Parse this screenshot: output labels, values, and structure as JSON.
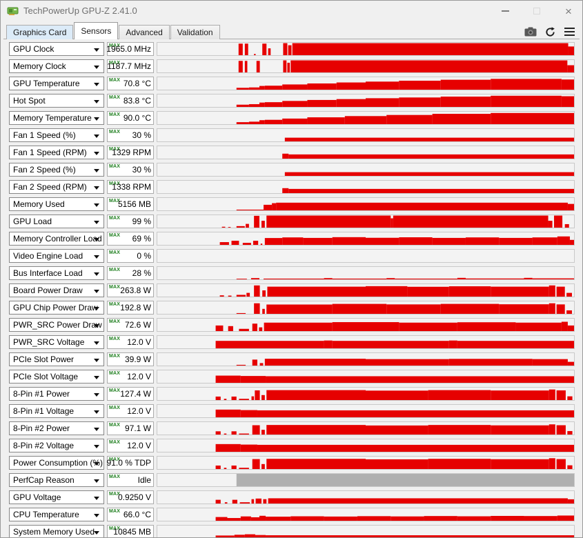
{
  "window": {
    "title": "TechPowerUp GPU-Z 2.41.0",
    "controls": {
      "minimize": "minimize",
      "maximize": "maximize",
      "close": "close"
    }
  },
  "tabs": [
    {
      "label": "Graphics Card",
      "active": false,
      "hover": true
    },
    {
      "label": "Sensors",
      "active": true,
      "hover": false
    },
    {
      "label": "Advanced",
      "active": false,
      "hover": false
    },
    {
      "label": "Validation",
      "active": false,
      "hover": false
    }
  ],
  "toolbar_icons": [
    "camera-icon",
    "refresh-icon",
    "menu-icon"
  ],
  "colors": {
    "graph_red": "#e60000",
    "graph_gray": "#b0b0b0",
    "max_green": "#1c7d1c",
    "dialog_bg": "#f0f0f0"
  },
  "max_label": "MAX",
  "sensors": [
    {
      "label": "GPU Clock",
      "value": "1965.0 MHz",
      "color": "red",
      "segments": [
        [
          0.195,
          0.205,
          0.93
        ],
        [
          0.21,
          0.218,
          0.93
        ],
        [
          0.232,
          0.236,
          0.1
        ],
        [
          0.252,
          0.262,
          0.93
        ],
        [
          0.266,
          0.272,
          0.55
        ],
        [
          0.302,
          0.312,
          0.97
        ],
        [
          0.314,
          0.322,
          0.8
        ],
        [
          0.324,
          0.986,
          0.97
        ],
        [
          0.986,
          1.0,
          0.7
        ]
      ]
    },
    {
      "label": "Memory Clock",
      "value": "1187.7 MHz",
      "color": "red",
      "segments": [
        [
          0.195,
          0.205,
          0.93
        ],
        [
          0.21,
          0.216,
          0.93
        ],
        [
          0.238,
          0.246,
          0.93
        ],
        [
          0.302,
          0.31,
          0.97
        ],
        [
          0.312,
          0.318,
          0.78
        ],
        [
          0.32,
          0.984,
          0.97
        ],
        [
          0.984,
          1.0,
          0.58
        ]
      ]
    },
    {
      "label": "GPU Temperature",
      "value": "70.8 °C",
      "color": "red",
      "segments": [
        [
          0.19,
          0.22,
          0.15
        ],
        [
          0.22,
          0.245,
          0.18
        ],
        [
          0.245,
          0.258,
          0.3
        ],
        [
          0.258,
          0.3,
          0.32
        ],
        [
          0.3,
          0.36,
          0.42
        ],
        [
          0.36,
          0.43,
          0.5
        ],
        [
          0.43,
          0.5,
          0.58
        ],
        [
          0.5,
          0.58,
          0.65
        ],
        [
          0.58,
          0.68,
          0.72
        ],
        [
          0.68,
          0.8,
          0.8
        ],
        [
          0.8,
          0.97,
          0.87
        ],
        [
          0.97,
          1.0,
          0.82
        ]
      ]
    },
    {
      "label": "Hot Spot",
      "value": "83.8 °C",
      "color": "red",
      "segments": [
        [
          0.19,
          0.22,
          0.18
        ],
        [
          0.22,
          0.245,
          0.22
        ],
        [
          0.245,
          0.258,
          0.35
        ],
        [
          0.258,
          0.3,
          0.38
        ],
        [
          0.3,
          0.36,
          0.48
        ],
        [
          0.36,
          0.43,
          0.56
        ],
        [
          0.43,
          0.5,
          0.63
        ],
        [
          0.5,
          0.58,
          0.7
        ],
        [
          0.58,
          0.68,
          0.76
        ],
        [
          0.68,
          0.8,
          0.83
        ],
        [
          0.8,
          0.97,
          0.9
        ],
        [
          0.97,
          1.0,
          0.86
        ]
      ]
    },
    {
      "label": "Memory Temperature",
      "value": "90.0 °C",
      "color": "red",
      "segments": [
        [
          0.19,
          0.22,
          0.16
        ],
        [
          0.22,
          0.245,
          0.2
        ],
        [
          0.245,
          0.258,
          0.32
        ],
        [
          0.258,
          0.3,
          0.35
        ],
        [
          0.3,
          0.36,
          0.45
        ],
        [
          0.36,
          0.45,
          0.55
        ],
        [
          0.45,
          0.55,
          0.65
        ],
        [
          0.55,
          0.66,
          0.74
        ],
        [
          0.66,
          0.8,
          0.83
        ],
        [
          0.8,
          1.0,
          0.9
        ]
      ]
    },
    {
      "label": "Fan 1 Speed (%)",
      "value": "30 %",
      "color": "red",
      "segments": [
        [
          0.306,
          1.0,
          0.3
        ]
      ]
    },
    {
      "label": "Fan 1 Speed (RPM)",
      "value": "1329 RPM",
      "color": "red",
      "segments": [
        [
          0.3,
          0.315,
          0.4
        ],
        [
          0.315,
          1.0,
          0.34
        ]
      ]
    },
    {
      "label": "Fan 2 Speed (%)",
      "value": "30 %",
      "color": "red",
      "segments": [
        [
          0.306,
          1.0,
          0.3
        ]
      ]
    },
    {
      "label": "Fan 2 Speed (RPM)",
      "value": "1338 RPM",
      "color": "red",
      "segments": [
        [
          0.3,
          0.315,
          0.4
        ],
        [
          0.315,
          1.0,
          0.34
        ]
      ]
    },
    {
      "label": "Memory Used",
      "value": "5156 MB",
      "color": "red",
      "segments": [
        [
          0.19,
          0.255,
          0.06
        ],
        [
          0.255,
          0.275,
          0.45
        ],
        [
          0.275,
          0.285,
          0.58
        ],
        [
          0.285,
          0.985,
          0.62
        ],
        [
          0.985,
          1.0,
          0.52
        ]
      ]
    },
    {
      "label": "GPU Load",
      "value": "99 %",
      "color": "red",
      "segments": [
        [
          0.155,
          0.163,
          0.07
        ],
        [
          0.17,
          0.176,
          0.05
        ],
        [
          0.19,
          0.21,
          0.12
        ],
        [
          0.212,
          0.22,
          0.3
        ],
        [
          0.232,
          0.245,
          0.95
        ],
        [
          0.25,
          0.258,
          0.55
        ],
        [
          0.262,
          0.56,
          0.97
        ],
        [
          0.56,
          0.566,
          0.75
        ],
        [
          0.566,
          0.938,
          0.97
        ],
        [
          0.938,
          0.948,
          0.55
        ],
        [
          0.952,
          0.972,
          0.97
        ],
        [
          0.978,
          0.988,
          0.28
        ]
      ]
    },
    {
      "label": "Memory Controller Load",
      "value": "69 %",
      "color": "red",
      "segments": [
        [
          0.15,
          0.172,
          0.22
        ],
        [
          0.178,
          0.196,
          0.33
        ],
        [
          0.205,
          0.225,
          0.16
        ],
        [
          0.23,
          0.242,
          0.33
        ],
        [
          0.248,
          0.252,
          0.1
        ],
        [
          0.258,
          0.3,
          0.55
        ],
        [
          0.3,
          0.35,
          0.6
        ],
        [
          0.35,
          0.42,
          0.56
        ],
        [
          0.42,
          0.5,
          0.62
        ],
        [
          0.5,
          0.58,
          0.57
        ],
        [
          0.58,
          0.66,
          0.61
        ],
        [
          0.66,
          0.74,
          0.56
        ],
        [
          0.74,
          0.82,
          0.6
        ],
        [
          0.82,
          0.9,
          0.56
        ],
        [
          0.9,
          0.96,
          0.6
        ],
        [
          0.96,
          0.99,
          0.68
        ],
        [
          0.99,
          1.0,
          0.4
        ]
      ]
    },
    {
      "label": "Video Engine Load",
      "value": "0 %",
      "color": "red",
      "segments": []
    },
    {
      "label": "Bus Interface Load",
      "value": "28 %",
      "color": "red",
      "segments": [
        [
          0.19,
          0.215,
          0.05
        ],
        [
          0.225,
          0.245,
          0.1
        ],
        [
          0.255,
          0.4,
          0.06
        ],
        [
          0.4,
          0.42,
          0.1
        ],
        [
          0.42,
          0.55,
          0.06
        ],
        [
          0.55,
          0.57,
          0.1
        ],
        [
          0.57,
          0.72,
          0.06
        ],
        [
          0.72,
          0.74,
          0.12
        ],
        [
          0.74,
          0.88,
          0.07
        ],
        [
          0.88,
          0.9,
          0.12
        ],
        [
          0.9,
          1.0,
          0.08
        ]
      ]
    },
    {
      "label": "Board Power Draw",
      "value": "263.8 W",
      "color": "red",
      "segments": [
        [
          0.15,
          0.16,
          0.1
        ],
        [
          0.17,
          0.178,
          0.08
        ],
        [
          0.19,
          0.212,
          0.14
        ],
        [
          0.214,
          0.222,
          0.3
        ],
        [
          0.232,
          0.246,
          0.9
        ],
        [
          0.252,
          0.26,
          0.5
        ],
        [
          0.264,
          0.5,
          0.8
        ],
        [
          0.5,
          0.6,
          0.84
        ],
        [
          0.6,
          0.7,
          0.79
        ],
        [
          0.7,
          0.8,
          0.83
        ],
        [
          0.8,
          0.94,
          0.8
        ],
        [
          0.94,
          0.955,
          0.9
        ],
        [
          0.958,
          0.978,
          0.8
        ],
        [
          0.982,
          0.995,
          0.3
        ]
      ]
    },
    {
      "label": "GPU Chip Power Draw",
      "value": "192.8 W",
      "color": "red",
      "segments": [
        [
          0.19,
          0.212,
          0.06
        ],
        [
          0.232,
          0.246,
          0.85
        ],
        [
          0.252,
          0.258,
          0.4
        ],
        [
          0.262,
          0.42,
          0.75
        ],
        [
          0.42,
          0.55,
          0.8
        ],
        [
          0.55,
          0.68,
          0.76
        ],
        [
          0.68,
          0.82,
          0.8
        ],
        [
          0.82,
          0.94,
          0.77
        ],
        [
          0.94,
          0.955,
          0.85
        ],
        [
          0.958,
          0.978,
          0.76
        ],
        [
          0.982,
          0.995,
          0.28
        ]
      ]
    },
    {
      "label": "PWR_SRC Power Draw",
      "value": "72.6 W",
      "color": "red",
      "segments": [
        [
          0.14,
          0.158,
          0.45
        ],
        [
          0.17,
          0.182,
          0.4
        ],
        [
          0.196,
          0.22,
          0.18
        ],
        [
          0.228,
          0.24,
          0.6
        ],
        [
          0.244,
          0.252,
          0.3
        ],
        [
          0.256,
          0.42,
          0.68
        ],
        [
          0.42,
          0.58,
          0.72
        ],
        [
          0.58,
          0.72,
          0.68
        ],
        [
          0.72,
          0.86,
          0.71
        ],
        [
          0.86,
          0.97,
          0.68
        ],
        [
          0.97,
          0.985,
          0.75
        ],
        [
          0.985,
          1.0,
          0.45
        ]
      ]
    },
    {
      "label": "PWR_SRC Voltage",
      "value": "12.0 V",
      "color": "red",
      "segments": [
        [
          0.14,
          0.4,
          0.6
        ],
        [
          0.4,
          0.42,
          0.63
        ],
        [
          0.42,
          0.7,
          0.6
        ],
        [
          0.7,
          0.72,
          0.63
        ],
        [
          0.72,
          1.0,
          0.6
        ]
      ]
    },
    {
      "label": "PCIe Slot Power",
      "value": "39.9 W",
      "color": "red",
      "segments": [
        [
          0.19,
          0.212,
          0.06
        ],
        [
          0.228,
          0.24,
          0.48
        ],
        [
          0.246,
          0.254,
          0.2
        ],
        [
          0.258,
          0.5,
          0.55
        ],
        [
          0.5,
          0.7,
          0.52
        ],
        [
          0.7,
          0.9,
          0.54
        ],
        [
          0.9,
          0.985,
          0.52
        ],
        [
          0.985,
          1.0,
          0.3
        ]
      ]
    },
    {
      "label": "PCIe Slot Voltage",
      "value": "12.0 V",
      "color": "red",
      "segments": [
        [
          0.14,
          0.2,
          0.58
        ],
        [
          0.2,
          0.26,
          0.55
        ],
        [
          0.26,
          1.0,
          0.53
        ]
      ]
    },
    {
      "label": "8-Pin #1 Power",
      "value": "127.4 W",
      "color": "red",
      "segments": [
        [
          0.14,
          0.152,
          0.28
        ],
        [
          0.16,
          0.166,
          0.1
        ],
        [
          0.178,
          0.19,
          0.28
        ],
        [
          0.196,
          0.22,
          0.1
        ],
        [
          0.226,
          0.232,
          0.3
        ],
        [
          0.234,
          0.246,
          0.78
        ],
        [
          0.25,
          0.258,
          0.4
        ],
        [
          0.262,
          0.5,
          0.8
        ],
        [
          0.5,
          0.65,
          0.76
        ],
        [
          0.65,
          0.8,
          0.8
        ],
        [
          0.8,
          0.94,
          0.77
        ],
        [
          0.94,
          0.955,
          0.85
        ],
        [
          0.958,
          0.98,
          0.78
        ],
        [
          0.984,
          0.996,
          0.3
        ]
      ]
    },
    {
      "label": "8-Pin #1 Voltage",
      "value": "12.0 V",
      "color": "red",
      "segments": [
        [
          0.14,
          0.2,
          0.62
        ],
        [
          0.2,
          0.24,
          0.58
        ],
        [
          0.24,
          1.0,
          0.56
        ]
      ]
    },
    {
      "label": "8-Pin #2 Power",
      "value": "97.1 W",
      "color": "red",
      "segments": [
        [
          0.14,
          0.152,
          0.26
        ],
        [
          0.16,
          0.166,
          0.08
        ],
        [
          0.178,
          0.19,
          0.26
        ],
        [
          0.196,
          0.22,
          0.08
        ],
        [
          0.228,
          0.246,
          0.75
        ],
        [
          0.25,
          0.258,
          0.38
        ],
        [
          0.262,
          0.5,
          0.77
        ],
        [
          0.5,
          0.65,
          0.73
        ],
        [
          0.65,
          0.8,
          0.77
        ],
        [
          0.8,
          0.94,
          0.74
        ],
        [
          0.94,
          0.955,
          0.82
        ],
        [
          0.958,
          0.98,
          0.75
        ],
        [
          0.984,
          0.996,
          0.28
        ]
      ]
    },
    {
      "label": "8-Pin #2 Voltage",
      "value": "12.0 V",
      "color": "red",
      "segments": [
        [
          0.14,
          0.2,
          0.62
        ],
        [
          0.2,
          0.24,
          0.58
        ],
        [
          0.24,
          1.0,
          0.56
        ]
      ]
    },
    {
      "label": "Power Consumption (%)",
      "value": "91.0 % TDP",
      "color": "red",
      "segments": [
        [
          0.14,
          0.152,
          0.28
        ],
        [
          0.16,
          0.166,
          0.1
        ],
        [
          0.178,
          0.19,
          0.28
        ],
        [
          0.196,
          0.22,
          0.1
        ],
        [
          0.228,
          0.246,
          0.8
        ],
        [
          0.25,
          0.258,
          0.4
        ],
        [
          0.262,
          0.5,
          0.82
        ],
        [
          0.5,
          0.65,
          0.78
        ],
        [
          0.65,
          0.8,
          0.82
        ],
        [
          0.8,
          0.94,
          0.79
        ],
        [
          0.94,
          0.955,
          0.87
        ],
        [
          0.958,
          0.98,
          0.8
        ],
        [
          0.984,
          0.996,
          0.3
        ]
      ]
    },
    {
      "label": "PerfCap Reason",
      "value": "Idle",
      "color": "gray",
      "segments": [
        [
          0.19,
          1.0,
          1.0
        ]
      ]
    },
    {
      "label": "GPU Voltage",
      "value": "0.9250 V",
      "color": "red",
      "segments": [
        [
          0.14,
          0.152,
          0.3
        ],
        [
          0.162,
          0.168,
          0.1
        ],
        [
          0.18,
          0.192,
          0.3
        ],
        [
          0.198,
          0.222,
          0.1
        ],
        [
          0.226,
          0.232,
          0.35
        ],
        [
          0.236,
          0.25,
          0.4
        ],
        [
          0.254,
          0.262,
          0.35
        ],
        [
          0.266,
          0.985,
          0.42
        ],
        [
          0.985,
          1.0,
          0.34
        ]
      ]
    },
    {
      "label": "CPU Temperature",
      "value": "66.0 °C",
      "color": "red",
      "segments": [
        [
          0.14,
          0.168,
          0.3
        ],
        [
          0.168,
          0.2,
          0.22
        ],
        [
          0.2,
          0.225,
          0.35
        ],
        [
          0.225,
          0.245,
          0.28
        ],
        [
          0.245,
          0.26,
          0.4
        ],
        [
          0.26,
          0.32,
          0.33
        ],
        [
          0.32,
          0.4,
          0.36
        ],
        [
          0.4,
          0.48,
          0.34
        ],
        [
          0.48,
          0.56,
          0.37
        ],
        [
          0.56,
          0.64,
          0.35
        ],
        [
          0.64,
          0.72,
          0.38
        ],
        [
          0.72,
          0.8,
          0.36
        ],
        [
          0.8,
          0.88,
          0.39
        ],
        [
          0.88,
          0.96,
          0.38
        ],
        [
          0.96,
          1.0,
          0.42
        ]
      ]
    },
    {
      "label": "System Memory Used",
      "value": "10845 MB",
      "color": "red",
      "segments": [
        [
          0.14,
          0.185,
          0.2
        ],
        [
          0.185,
          0.21,
          0.26
        ],
        [
          0.21,
          0.235,
          0.3
        ],
        [
          0.235,
          0.26,
          0.24
        ],
        [
          0.26,
          1.0,
          0.22
        ]
      ]
    }
  ]
}
